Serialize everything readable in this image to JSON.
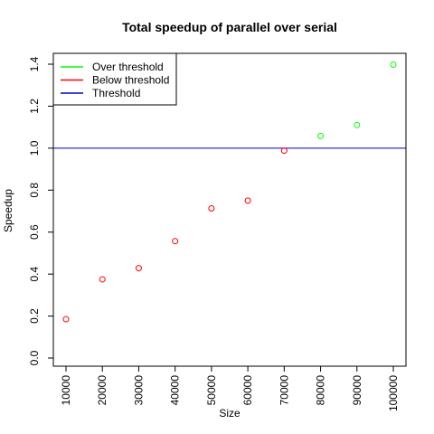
{
  "chart_data": {
    "type": "scatter",
    "title": "Total speedup of parallel over serial",
    "xlabel": "Size",
    "ylabel": "Speedup",
    "xlim": [
      10000,
      100000
    ],
    "ylim": [
      0,
      1.4
    ],
    "x_ticks": [
      "10000",
      "20000",
      "30000",
      "40000",
      "50000",
      "60000",
      "70000",
      "80000",
      "90000",
      "100000"
    ],
    "y_ticks": [
      "0.0",
      "0.2",
      "0.4",
      "0.6",
      "0.8",
      "1.0",
      "1.2",
      "1.4"
    ],
    "threshold": 1.0,
    "grid": false,
    "legend_position": "top-left",
    "legend": [
      {
        "label": "Over threshold",
        "color": "#00ff00"
      },
      {
        "label": "Below threshold",
        "color": "#ff0000"
      },
      {
        "label": "Threshold",
        "color": "#0000cc"
      }
    ],
    "series": [
      {
        "name": "Below threshold",
        "color": "#ff0000",
        "points": [
          {
            "x": 10000,
            "y": 0.185
          },
          {
            "x": 20000,
            "y": 0.375
          },
          {
            "x": 30000,
            "y": 0.428
          },
          {
            "x": 40000,
            "y": 0.557
          },
          {
            "x": 50000,
            "y": 0.713
          },
          {
            "x": 60000,
            "y": 0.75
          },
          {
            "x": 70000,
            "y": 0.988
          }
        ]
      },
      {
        "name": "Over threshold",
        "color": "#00ff00",
        "points": [
          {
            "x": 80000,
            "y": 1.058
          },
          {
            "x": 90000,
            "y": 1.11
          },
          {
            "x": 100000,
            "y": 1.398
          }
        ]
      }
    ]
  }
}
